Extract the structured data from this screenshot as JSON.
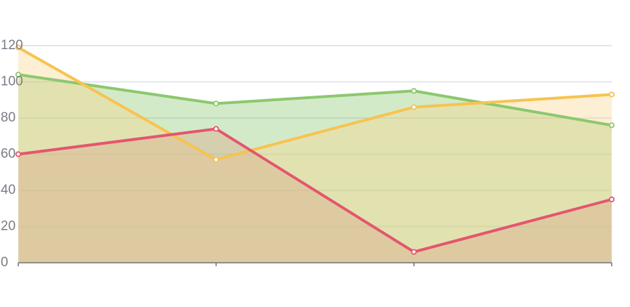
{
  "chart_data": {
    "type": "area",
    "title": "",
    "xlabel": "",
    "ylabel": "",
    "x": [
      0,
      1,
      2,
      3
    ],
    "ylim": [
      0,
      120
    ],
    "yticks": [
      0,
      20,
      40,
      60,
      80,
      100,
      120
    ],
    "grid": true,
    "legend": "none",
    "series": [
      {
        "key": "green",
        "color": "#8cc86e",
        "fill": "#8cc86e",
        "values": [
          104,
          88,
          95,
          76
        ]
      },
      {
        "key": "yellow",
        "color": "#f7c350",
        "fill": "#fbd58c",
        "values": [
          119,
          57,
          86,
          93
        ]
      },
      {
        "key": "red",
        "color": "#e4566e",
        "fill": "#d7a38a",
        "values": [
          60,
          74,
          6,
          35
        ]
      }
    ]
  }
}
